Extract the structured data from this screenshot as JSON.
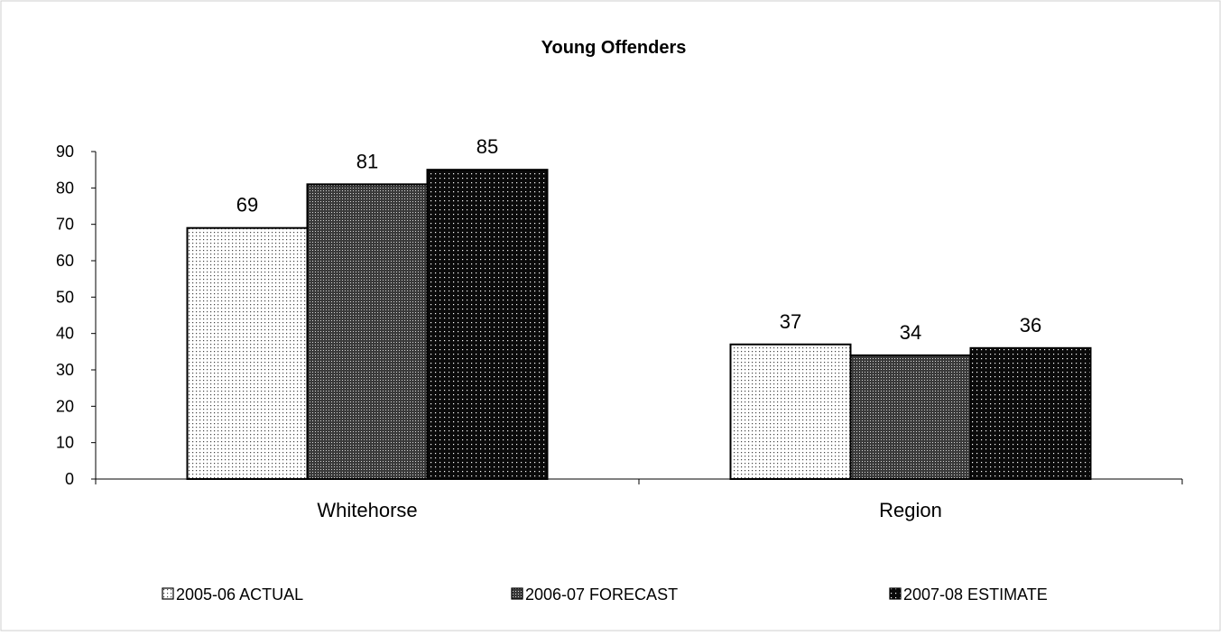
{
  "chart_data": {
    "type": "bar",
    "title": "Young Offenders",
    "categories": [
      "Whitehorse",
      "Region"
    ],
    "series": [
      {
        "name": "2005-06 ACTUAL",
        "values": [
          69,
          37
        ],
        "pattern": "light-dots"
      },
      {
        "name": "2006-07 FORECAST",
        "values": [
          81,
          34
        ],
        "pattern": "dense-dots"
      },
      {
        "name": "2007-08 ESTIMATE",
        "values": [
          85,
          36
        ],
        "pattern": "dark-dots"
      }
    ],
    "ylim": [
      0,
      90
    ],
    "yticks": [
      0,
      10,
      20,
      30,
      40,
      50,
      60,
      70,
      80,
      90
    ],
    "xlabel": "",
    "ylabel": "",
    "grid": false,
    "legend_position": "bottom"
  }
}
